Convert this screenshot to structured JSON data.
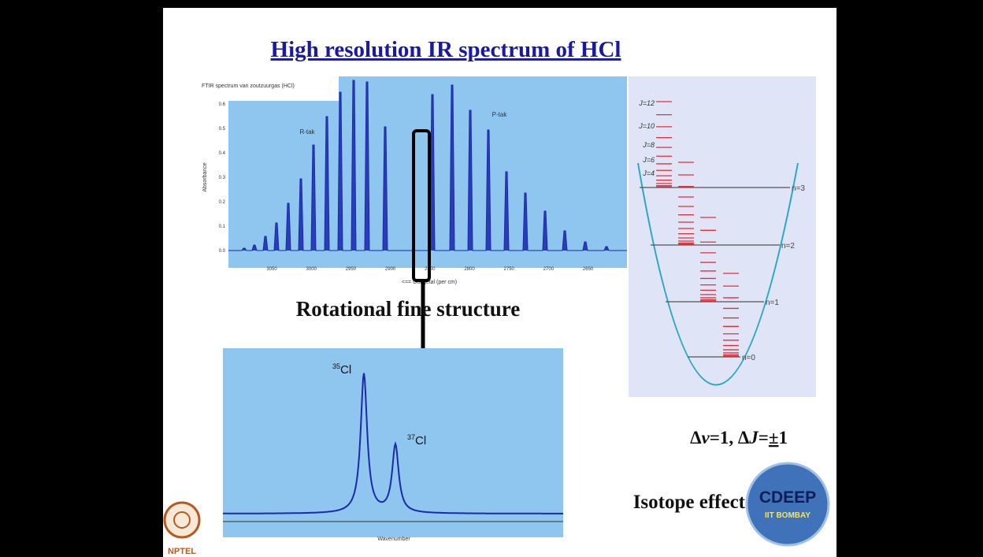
{
  "title": "High resolution IR spectrum of HCl",
  "spectrum": {
    "title": "FTIR spectrum van zoutzuurgas (HCl)",
    "y_label": "Absorbance",
    "x_label": "<== Golfgetal (per cm)",
    "r_branch": "R-tak",
    "p_branch": "P-tak",
    "y_ticks": [
      "0.0",
      "0.1",
      "0.2",
      "0.3",
      "0.4",
      "0.5",
      "0.6"
    ],
    "x_ticks": [
      "3050",
      "3000",
      "2950",
      "2900",
      "2850",
      "2800",
      "2750",
      "2700",
      "2650"
    ]
  },
  "fine_structure_label": "Rotational fine structure",
  "isotope_spectrum": {
    "x_label": "Wavenumber",
    "peak_35": {
      "mass": "35",
      "symbol": "Cl"
    },
    "peak_37": {
      "mass": "37",
      "symbol": "Cl"
    }
  },
  "energy_diagram": {
    "j_labels": [
      "J=12",
      "J=10",
      "J=8",
      "J=6",
      "J=4"
    ],
    "n_labels": [
      "n=3",
      "n=2",
      "n=1",
      "n=0"
    ]
  },
  "selection_rule": [
    "Δ",
    "v",
    "=1, Δ",
    "J",
    "=",
    "±",
    "1"
  ],
  "isotope_effect": "Isotope effect",
  "logos": {
    "nptel": "NPTEL",
    "cdeep": "CDEEP",
    "cdeep_sub": "IIT BOMBAY"
  }
}
